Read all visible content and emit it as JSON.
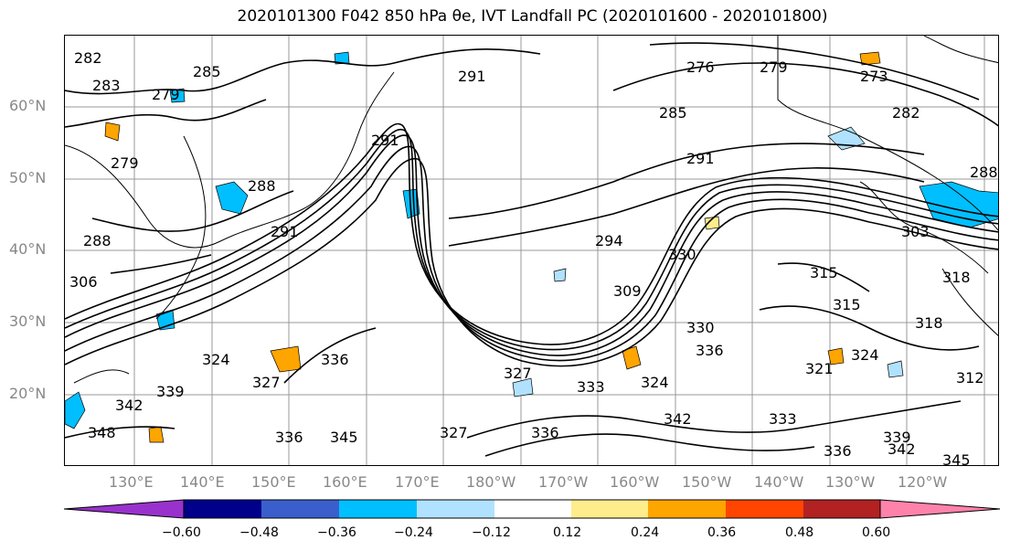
{
  "title": "2020101300 F042 850 hPa θe, IVT Landfall PC (2020101600 - 2020101800)",
  "lat_labels": [
    "60°N",
    "50°N",
    "40°N",
    "30°N",
    "20°N"
  ],
  "lon_labels": [
    "130°E",
    "140°E",
    "150°E",
    "160°E",
    "170°E",
    "180°W",
    "170°W",
    "160°W",
    "150°W",
    "140°W",
    "130°W",
    "120°W"
  ],
  "colorbar": {
    "ticks": [
      "−0.60",
      "−0.48",
      "−0.36",
      "−0.24",
      "−0.12",
      "0.12",
      "0.24",
      "0.36",
      "0.48",
      "0.60"
    ],
    "colors": [
      "#9932cc",
      "#00008b",
      "#3a5fcd",
      "#00bfff",
      "#b0e2ff",
      "#ffffff",
      "#ffec8b",
      "#ffa500",
      "#ff4500",
      "#b22222",
      "#ff82ab"
    ]
  },
  "contour_labels": [
    "282",
    "283",
    "285",
    "279",
    "279",
    "291",
    "276",
    "279",
    "273",
    "282",
    "288",
    "285",
    "291",
    "288",
    "294",
    "291",
    "288",
    "306",
    "291",
    "303",
    "309",
    "330",
    "315",
    "318",
    "315",
    "318",
    "330",
    "336",
    "345",
    "336",
    "327",
    "333",
    "324",
    "321",
    "324",
    "342",
    "336",
    "339",
    "342",
    "345",
    "312",
    "324",
    "327",
    "348",
    "342",
    "339",
    "327",
    "336",
    "333",
    "336"
  ],
  "colors": {
    "contour": "#000000",
    "coast": "#000000",
    "grid": "#999999",
    "axis_label": "#888888"
  }
}
